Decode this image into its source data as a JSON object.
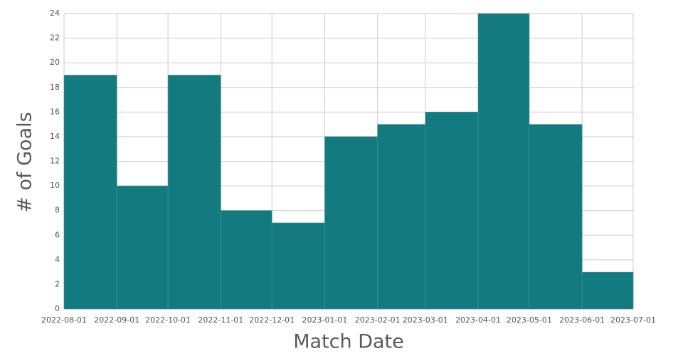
{
  "chart_data": {
    "type": "histogram",
    "x_label": "Match Date",
    "y_label": "# of Goals",
    "bins": [
      "2022-08-01",
      "2022-09-01",
      "2022-10-01",
      "2022-11-01",
      "2022-12-01",
      "2023-01-01",
      "2023-02-01",
      "2023-03-01",
      "2023-04-01",
      "2023-05-01",
      "2023-06-01",
      "2023-07-01"
    ],
    "values": [
      19,
      10,
      19,
      8,
      7,
      14,
      15,
      16,
      24,
      15,
      3
    ],
    "color": "#137a7f",
    "ylim": [
      0,
      24
    ],
    "yticks": [
      0,
      2,
      4,
      6,
      8,
      10,
      12,
      14,
      16,
      18,
      20,
      22,
      24
    ],
    "grid": true
  }
}
